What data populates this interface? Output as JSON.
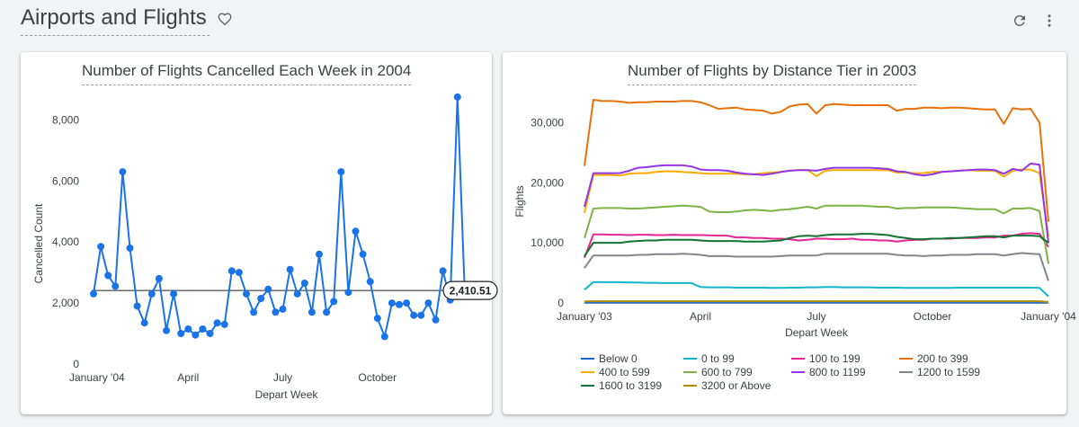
{
  "dashboard": {
    "title": "Airports and Flights",
    "icons": {
      "favorite": "heart-outline-icon",
      "refresh": "refresh-icon",
      "more": "more-vert-icon"
    }
  },
  "colors": {
    "accent": "#1a73e8",
    "text": "#3c4043",
    "grid_text": "#5f6368"
  },
  "chart_data": [
    {
      "type": "line",
      "title": "Number of Flights Cancelled Each Week in 2004",
      "xlabel": "Depart Week",
      "ylabel": "Cancelled Count",
      "x_tick_labels": [
        "January '04",
        "April",
        "July",
        "October"
      ],
      "x_tick_weeks": [
        1,
        14,
        27,
        40
      ],
      "y_ticks": [
        "0",
        "2,000",
        "4,000",
        "6,000",
        "8,000"
      ],
      "y_tick_values": [
        0,
        2000,
        4000,
        6000,
        8000
      ],
      "ylim": [
        0,
        8600
      ],
      "grid": false,
      "markers": true,
      "color": "#1a73e8",
      "reference_line": {
        "value": 2410.51,
        "label": "2,410.51"
      },
      "series": [
        {
          "x": [
            1,
            2,
            3,
            4,
            5,
            6,
            7,
            8,
            9,
            10,
            11,
            12,
            13,
            14,
            15,
            16,
            17,
            18,
            19,
            20,
            21,
            22,
            23,
            24,
            25,
            26,
            27,
            28,
            29,
            30,
            31,
            32,
            33,
            34,
            35,
            36,
            37,
            38,
            39,
            40,
            41,
            42,
            43,
            44,
            45,
            46,
            47,
            48,
            49,
            50,
            51,
            52,
            53
          ],
          "values": [
            2300,
            3850,
            2900,
            2550,
            6300,
            3800,
            1900,
            1350,
            2300,
            2800,
            1100,
            2300,
            1000,
            1150,
            950,
            1150,
            1000,
            1350,
            1300,
            3050,
            3000,
            2300,
            1700,
            2150,
            2450,
            1700,
            1800,
            3100,
            2300,
            2650,
            1700,
            3600,
            1700,
            2050,
            6300,
            2350,
            4350,
            3600,
            2700,
            1500,
            900,
            2000,
            1950,
            2000,
            1600,
            1600,
            2000,
            1450,
            3050,
            2100,
            8750,
            2300,
            2300
          ]
        }
      ]
    },
    {
      "type": "line",
      "title": "Number of Flights by Distance Tier in 2003",
      "xlabel": "Depart Week",
      "ylabel": "Flights",
      "x_tick_labels": [
        "January '03",
        "April",
        "July",
        "October",
        "January '04"
      ],
      "x_tick_weeks": [
        1,
        14,
        27,
        40,
        53
      ],
      "y_ticks": [
        "0",
        "10,000",
        "20,000",
        "30,000"
      ],
      "y_tick_values": [
        0,
        10000,
        20000,
        30000
      ],
      "ylim": [
        0,
        35000
      ],
      "grid": false,
      "legend_position": "bottom",
      "series": [
        {
          "name": "Below 0",
          "color": "#1967d2",
          "values": [
            50,
            50,
            50,
            50,
            50,
            50,
            50,
            50,
            50,
            50,
            50,
            50,
            50,
            50,
            50,
            50,
            50,
            50,
            50,
            50,
            50,
            50,
            50,
            50,
            50,
            50,
            50,
            50,
            50,
            50,
            50,
            50,
            50,
            50,
            50,
            50,
            50,
            50,
            50,
            50,
            50,
            50,
            50,
            50,
            50,
            50,
            50,
            50,
            50,
            50,
            50,
            50,
            50
          ]
        },
        {
          "name": "0 to 99",
          "color": "#12b5cb",
          "values": [
            2200,
            3450,
            3450,
            3450,
            3450,
            3400,
            3400,
            3350,
            3350,
            3300,
            3300,
            3300,
            3300,
            2650,
            2600,
            2600,
            2600,
            2550,
            2550,
            2550,
            2550,
            2500,
            2500,
            2550,
            2550,
            2600,
            2600,
            2650,
            2650,
            2600,
            2600,
            2600,
            2600,
            2550,
            2550,
            2550,
            2500,
            2500,
            2500,
            2500,
            2500,
            2500,
            2550,
            2550,
            2550,
            2550,
            2550,
            2550,
            2550,
            2550,
            2550,
            2500,
            1100
          ]
        },
        {
          "name": "100 to 199",
          "color": "#e52592",
          "values": [
            7500,
            11400,
            11400,
            11350,
            11350,
            11300,
            11350,
            11350,
            11300,
            11300,
            11350,
            11300,
            11300,
            11300,
            11250,
            11200,
            11200,
            10900,
            10900,
            10800,
            10800,
            10700,
            10700,
            10600,
            10400,
            10500,
            10700,
            10700,
            10600,
            10600,
            10700,
            10500,
            10500,
            10400,
            10400,
            10200,
            10400,
            10500,
            10500,
            10700,
            10700,
            10700,
            10800,
            10800,
            10800,
            10900,
            10900,
            11200,
            11200,
            11500,
            11600,
            11500,
            9300
          ]
        },
        {
          "name": "200 to 399",
          "color": "#e8710a",
          "values": [
            22800,
            33800,
            33600,
            33600,
            33500,
            33300,
            33400,
            33400,
            33500,
            33500,
            33500,
            33600,
            33600,
            33400,
            32900,
            32300,
            32400,
            32500,
            32200,
            32100,
            32000,
            31500,
            31800,
            32700,
            33000,
            33100,
            31500,
            32900,
            33100,
            33000,
            32900,
            32900,
            32900,
            32900,
            32900,
            32000,
            32300,
            32300,
            32500,
            32500,
            32400,
            32500,
            32500,
            32400,
            32300,
            32200,
            32200,
            29800,
            32400,
            32200,
            32300,
            30000,
            13500
          ]
        },
        {
          "name": "400 to 599",
          "color": "#f9ab00",
          "values": [
            15000,
            21300,
            21300,
            21300,
            21200,
            21500,
            21600,
            21600,
            21800,
            21900,
            21900,
            21800,
            21700,
            21600,
            21500,
            21500,
            21500,
            21500,
            21400,
            21400,
            21600,
            21700,
            21800,
            22000,
            22100,
            22100,
            21100,
            22000,
            22100,
            22100,
            22100,
            22100,
            22100,
            22100,
            22100,
            21700,
            21700,
            21600,
            21600,
            21800,
            21800,
            21900,
            22000,
            22100,
            22000,
            22000,
            22000,
            21000,
            22000,
            22200,
            22200,
            21600,
            11000
          ]
        },
        {
          "name": "600 to 799",
          "color": "#7cb342",
          "values": [
            10800,
            15700,
            15800,
            15800,
            15800,
            15700,
            15700,
            15800,
            15900,
            16000,
            16100,
            16200,
            16100,
            16000,
            15200,
            15100,
            15100,
            15200,
            15400,
            15500,
            15400,
            15300,
            15500,
            15600,
            15800,
            16000,
            15700,
            16200,
            16200,
            16200,
            16200,
            16200,
            16100,
            16000,
            16000,
            15700,
            15800,
            15800,
            15900,
            15900,
            15900,
            15900,
            15800,
            15700,
            15600,
            15600,
            15600,
            14900,
            15700,
            15700,
            15800,
            15300,
            6500
          ]
        },
        {
          "name": "800 to 1199",
          "color": "#9334e6",
          "values": [
            16000,
            21600,
            21600,
            21600,
            21600,
            22000,
            22500,
            22600,
            22800,
            22900,
            22900,
            22900,
            22700,
            22200,
            22100,
            22100,
            22000,
            21700,
            21500,
            21400,
            21300,
            21500,
            21800,
            22000,
            22100,
            22100,
            22000,
            22300,
            22500,
            22500,
            22500,
            22500,
            22500,
            22400,
            22300,
            21900,
            21800,
            21400,
            21200,
            21400,
            21800,
            21900,
            22000,
            22100,
            22200,
            22200,
            22100,
            21500,
            22300,
            22000,
            23200,
            23000,
            10000
          ]
        },
        {
          "name": "1200 to 1599",
          "color": "#80868b",
          "values": [
            5800,
            7900,
            7900,
            7900,
            7900,
            7900,
            8000,
            8000,
            8100,
            8100,
            8100,
            8200,
            8100,
            8000,
            7800,
            7800,
            7800,
            7700,
            7700,
            7700,
            7700,
            7700,
            7800,
            7900,
            7900,
            7900,
            7900,
            8200,
            8200,
            8200,
            8200,
            8200,
            8200,
            8200,
            8200,
            8000,
            7900,
            7900,
            7800,
            7900,
            7900,
            8000,
            8000,
            8000,
            8100,
            8100,
            8100,
            7900,
            8100,
            8300,
            8200,
            8100,
            3700
          ]
        },
        {
          "name": "1600 to 3199",
          "color": "#137333",
          "values": [
            7800,
            10000,
            10000,
            10000,
            10000,
            10200,
            10300,
            10400,
            10400,
            10500,
            10500,
            10500,
            10500,
            10400,
            10300,
            10300,
            10300,
            10300,
            10200,
            10200,
            10200,
            10300,
            10400,
            10800,
            11100,
            11200,
            11100,
            11300,
            11400,
            11400,
            11400,
            11500,
            11500,
            11400,
            11300,
            11000,
            10800,
            10600,
            10600,
            10700,
            10700,
            10800,
            10800,
            10900,
            11000,
            11100,
            11100,
            10900,
            11200,
            11200,
            11200,
            11100,
            10000
          ]
        },
        {
          "name": "3200 or Above",
          "color": "#b08d00",
          "values": [
            250,
            280,
            280,
            280,
            280,
            280,
            280,
            280,
            280,
            280,
            280,
            280,
            280,
            280,
            280,
            280,
            280,
            280,
            280,
            280,
            280,
            280,
            280,
            280,
            280,
            280,
            280,
            280,
            280,
            280,
            280,
            280,
            280,
            280,
            280,
            280,
            280,
            280,
            280,
            280,
            280,
            280,
            280,
            280,
            280,
            280,
            280,
            280,
            280,
            280,
            280,
            280,
            150
          ]
        }
      ]
    }
  ]
}
